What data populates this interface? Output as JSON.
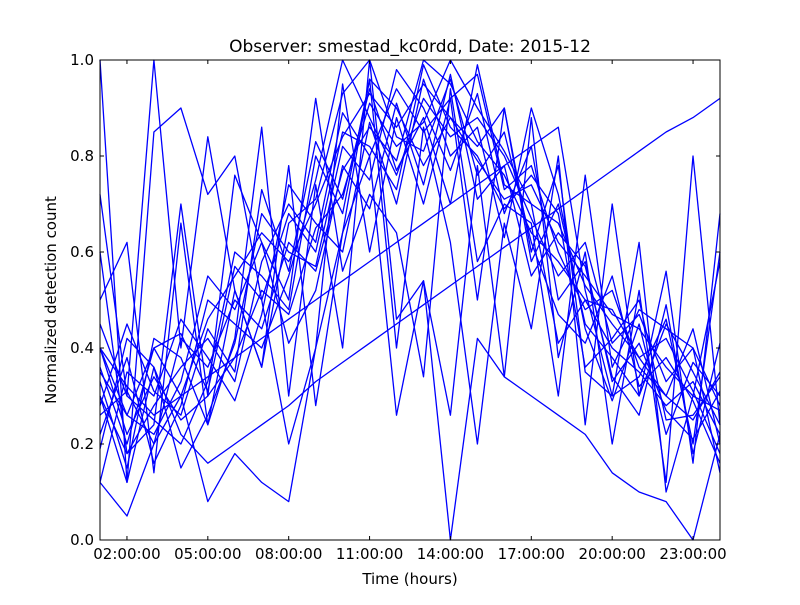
{
  "chart_data": {
    "type": "line",
    "title": "Observer: smestad_kc0rdd, Date: 2015-12",
    "xlabel": "Time (hours)",
    "ylabel": "Normalized detection count",
    "xlim": [
      "01:00:00",
      "24:00:00"
    ],
    "ylim": [
      0.0,
      1.0
    ],
    "x_ticks": [
      "02:00:00",
      "05:00:00",
      "08:00:00",
      "11:00:00",
      "14:00:00",
      "17:00:00",
      "20:00:00",
      "23:00:00"
    ],
    "y_ticks": [
      "0.0",
      "0.2",
      "0.4",
      "0.6",
      "0.8",
      "1.0"
    ],
    "grid": false,
    "legend": "none",
    "line_color": "#0000ff",
    "x": [
      "01:00:00",
      "02:00:00",
      "03:00:00",
      "04:00:00",
      "05:00:00",
      "06:00:00",
      "07:00:00",
      "08:00:00",
      "09:00:00",
      "10:00:00",
      "11:00:00",
      "12:00:00",
      "13:00:00",
      "14:00:00",
      "15:00:00",
      "16:00:00",
      "17:00:00",
      "18:00:00",
      "19:00:00",
      "20:00:00",
      "21:00:00",
      "22:00:00",
      "23:00:00",
      "24:00:00"
    ],
    "series": [
      {
        "values": [
          0.35,
          0.26,
          0.4,
          0.3,
          0.46,
          0.55,
          0.64,
          0.58,
          0.7,
          0.84,
          0.93,
          0.86,
          0.95,
          0.88,
          0.79,
          0.71,
          0.74,
          0.62,
          0.55,
          0.47,
          0.44,
          0.36,
          0.3,
          0.27
        ]
      },
      {
        "values": [
          0.26,
          0.31,
          0.2,
          0.42,
          0.36,
          0.5,
          0.44,
          0.62,
          0.56,
          0.77,
          0.86,
          0.79,
          1.0,
          0.95,
          0.83,
          0.76,
          0.64,
          0.58,
          0.5,
          0.4,
          0.35,
          0.28,
          0.33,
          0.22
        ]
      },
      {
        "values": [
          0.4,
          0.22,
          0.34,
          0.25,
          0.3,
          0.38,
          0.52,
          0.47,
          0.65,
          0.72,
          0.91,
          0.82,
          0.87,
          1.0,
          0.9,
          0.81,
          0.7,
          0.66,
          0.53,
          0.45,
          0.38,
          0.42,
          0.31,
          0.18
        ]
      },
      {
        "values": [
          0.3,
          0.18,
          0.28,
          0.36,
          0.42,
          0.33,
          0.58,
          0.7,
          0.62,
          0.89,
          0.8,
          0.94,
          0.85,
          0.92,
          0.97,
          0.73,
          0.78,
          0.6,
          0.48,
          0.52,
          0.36,
          0.3,
          0.25,
          0.35
        ]
      },
      {
        "values": [
          0.22,
          0.38,
          0.16,
          0.28,
          0.5,
          0.45,
          0.4,
          0.55,
          0.75,
          1.0,
          0.88,
          0.76,
          0.92,
          0.84,
          0.88,
          0.8,
          0.67,
          0.55,
          0.62,
          0.41,
          0.47,
          0.33,
          0.4,
          0.28
        ]
      },
      {
        "values": [
          0.45,
          0.3,
          0.25,
          0.2,
          0.33,
          0.6,
          0.55,
          0.48,
          0.8,
          0.68,
          0.96,
          0.9,
          0.78,
          0.88,
          0.82,
          0.9,
          0.58,
          0.7,
          0.45,
          0.38,
          0.3,
          0.45,
          0.35,
          0.24
        ]
      },
      {
        "values": [
          0.19,
          0.42,
          0.36,
          0.15,
          0.26,
          0.41,
          0.68,
          0.6,
          0.57,
          0.82,
          0.75,
          0.98,
          0.9,
          0.77,
          0.93,
          0.68,
          0.82,
          0.5,
          0.58,
          0.33,
          0.41,
          0.27,
          0.21,
          0.31
        ]
      },
      {
        "values": [
          0.33,
          0.15,
          0.42,
          0.38,
          0.24,
          0.52,
          0.36,
          0.66,
          0.71,
          0.93,
          1.0,
          0.84,
          0.81,
          0.96,
          0.76,
          0.85,
          0.62,
          0.47,
          0.41,
          0.55,
          0.32,
          0.38,
          0.29,
          0.16
        ]
      },
      {
        "values": [
          0.12,
          0.35,
          0.3,
          0.46,
          0.38,
          0.29,
          0.47,
          0.74,
          0.66,
          0.6,
          0.87,
          0.7,
          0.96,
          0.8,
          0.86,
          0.63,
          0.9,
          0.72,
          0.44,
          0.29,
          0.45,
          0.22,
          0.37,
          0.3
        ]
      },
      {
        "values": [
          0.4,
          0.26,
          0.22,
          0.33,
          0.55,
          0.48,
          0.62,
          0.41,
          0.52,
          0.78,
          0.69,
          0.91,
          0.74,
          0.97,
          0.71,
          0.78,
          0.55,
          0.64,
          0.57,
          0.34,
          0.26,
          0.49,
          0.18,
          0.41
        ]
      },
      {
        "values": [
          0.28,
          0.45,
          0.31,
          0.26,
          0.44,
          0.35,
          0.73,
          0.56,
          0.83,
          0.71,
          0.94,
          0.77,
          0.88,
          0.7,
          0.99,
          0.74,
          0.7,
          0.41,
          0.5,
          0.48,
          0.38,
          0.3,
          0.44,
          0.2
        ]
      },
      {
        "values": [
          0.36,
          0.2,
          0.4,
          0.43,
          0.31,
          0.57,
          0.5,
          0.68,
          0.6,
          0.85,
          0.82,
          0.73,
          0.99,
          0.86,
          0.8,
          0.69,
          0.76,
          0.68,
          0.36,
          0.42,
          0.5,
          0.25,
          0.26,
          0.34
        ]
      },
      {
        "values": [
          1.0,
          0.12,
          0.85,
          0.9,
          0.72,
          0.8,
          0.5,
          0.2,
          0.4,
          0.95,
          0.6,
          0.88,
          0.7,
          0.92,
          0.5,
          0.9,
          0.6,
          0.78,
          0.35,
          0.3,
          0.62,
          0.1,
          0.3,
          0.58
        ]
      },
      {
        "values": [
          0.72,
          0.3,
          1.0,
          0.4,
          0.84,
          0.52,
          0.36,
          0.78,
          0.28,
          0.64,
          0.96,
          0.4,
          0.86,
          0.62,
          0.2,
          0.66,
          0.44,
          0.8,
          0.24,
          0.7,
          0.3,
          0.56,
          0.16,
          0.68
        ]
      },
      {
        "values": [
          0.5,
          0.62,
          0.14,
          0.66,
          0.24,
          0.42,
          0.86,
          0.3,
          0.74,
          0.4,
          1.0,
          0.46,
          0.54,
          0.26,
          0.78,
          0.34,
          0.88,
          0.38,
          0.6,
          0.2,
          0.52,
          0.12,
          0.8,
          0.24
        ]
      },
      {
        "values": [
          0.6,
          0.18,
          0.24,
          0.7,
          0.3,
          0.76,
          0.62,
          0.5,
          0.92,
          0.56,
          0.72,
          0.64,
          0.34,
          0.94,
          0.58,
          0.7,
          0.66,
          0.3,
          0.76,
          0.36,
          0.48,
          0.44,
          0.4,
          0.14
        ]
      },
      {
        "values": [
          0.12,
          0.05,
          0.2,
          0.3,
          0.08,
          0.18,
          0.12,
          0.08,
          0.4,
          0.64,
          0.8,
          0.26,
          0.54,
          0.0,
          0.42,
          0.34,
          0.3,
          0.26,
          0.22,
          0.14,
          0.1,
          0.08,
          0.0,
          0.22
        ]
      },
      {
        "values": [
          0.3,
          0.12,
          0.36,
          0.22,
          0.16,
          0.2,
          0.24,
          0.28,
          0.33,
          0.37,
          0.41,
          0.45,
          0.49,
          0.53,
          0.57,
          0.61,
          0.65,
          0.69,
          0.73,
          0.77,
          0.81,
          0.85,
          0.88,
          0.92
        ]
      },
      {
        "values": [
          0.4,
          0.32,
          0.26,
          0.3,
          0.34,
          0.38,
          0.42,
          0.46,
          0.5,
          0.54,
          0.58,
          0.62,
          0.66,
          0.7,
          0.74,
          0.78,
          0.82,
          0.86,
          0.52,
          0.3,
          0.34,
          0.46,
          0.2,
          0.6
        ]
      }
    ]
  }
}
